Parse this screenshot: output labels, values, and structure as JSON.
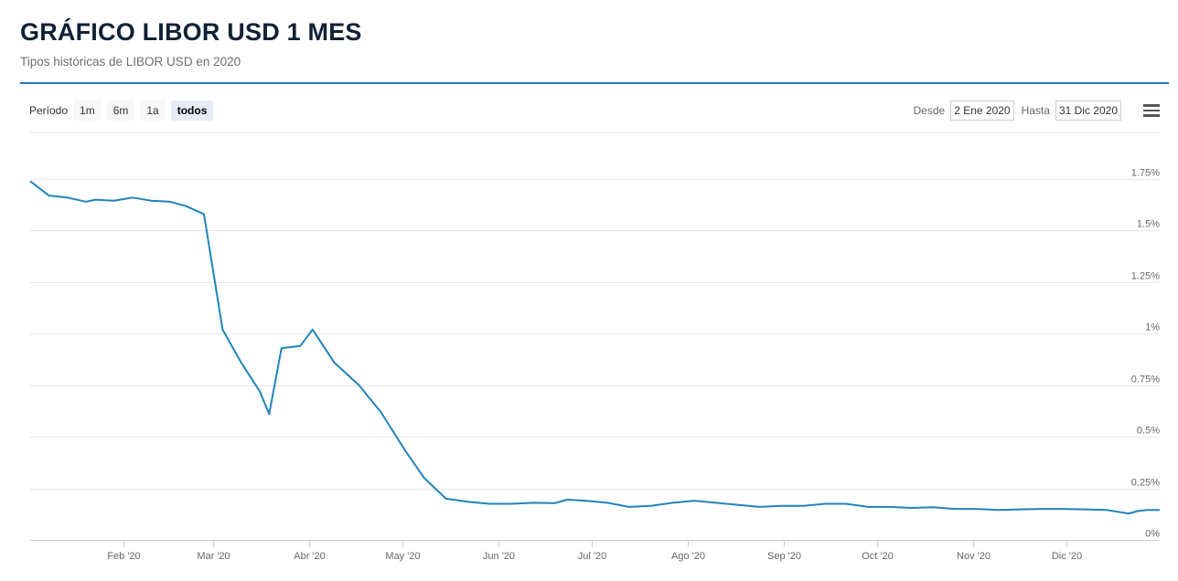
{
  "header": {
    "title": "GRÁFICO LIBOR USD 1 MES",
    "subtitle": "Tipos históricas de LIBOR USD en 2020"
  },
  "range_selector": {
    "label": "Período",
    "buttons": [
      {
        "label": "1m",
        "active": false
      },
      {
        "label": "6m",
        "active": false
      },
      {
        "label": "1a",
        "active": false
      },
      {
        "label": "todos",
        "active": true
      }
    ]
  },
  "date_range": {
    "from_label": "Desde",
    "from_value": "2 Ene 2020",
    "to_label": "Hasta",
    "to_value": "31 Dic 2020"
  },
  "menu": {
    "icon": "hamburger-menu-icon"
  },
  "colors": {
    "accent": "#1a7bc0",
    "line": "#1f84b9",
    "title": "#0f2137"
  },
  "chart_data": {
    "type": "line",
    "title": "GRÁFICO LIBOR USD 1 MES",
    "subtitle": "Tipos históricas de LIBOR USD en 2020",
    "xlabel": "",
    "ylabel": "",
    "x_range": [
      "2020-01-02",
      "2020-12-31"
    ],
    "ylim": [
      0,
      1.75
    ],
    "grid": true,
    "y_ticks": [
      {
        "value": 0,
        "label": "0%"
      },
      {
        "value": 0.25,
        "label": "0.25%"
      },
      {
        "value": 0.5,
        "label": "0.5%"
      },
      {
        "value": 0.75,
        "label": "0.75%"
      },
      {
        "value": 1,
        "label": "1%"
      },
      {
        "value": 1.25,
        "label": "1.25%"
      },
      {
        "value": 1.5,
        "label": "1.5%"
      },
      {
        "value": 1.75,
        "label": "1.75%"
      }
    ],
    "x_ticks": [
      {
        "date": "2020-02-01",
        "label": "Feb '20"
      },
      {
        "date": "2020-03-01",
        "label": "Mar '20"
      },
      {
        "date": "2020-04-01",
        "label": "Abr '20"
      },
      {
        "date": "2020-05-01",
        "label": "May '20"
      },
      {
        "date": "2020-06-01",
        "label": "Jun '20"
      },
      {
        "date": "2020-07-01",
        "label": "Jul '20"
      },
      {
        "date": "2020-08-01",
        "label": "Ago '20"
      },
      {
        "date": "2020-09-01",
        "label": "Sep '20"
      },
      {
        "date": "2020-10-01",
        "label": "Oct '20"
      },
      {
        "date": "2020-11-01",
        "label": "Nov '20"
      },
      {
        "date": "2020-12-01",
        "label": "Dic '20"
      }
    ],
    "series": [
      {
        "points": [
          [
            "2020-01-02",
            1.74
          ],
          [
            "2020-01-08",
            1.67
          ],
          [
            "2020-01-14",
            1.66
          ],
          [
            "2020-01-20",
            1.64
          ],
          [
            "2020-01-23",
            1.65
          ],
          [
            "2020-01-29",
            1.645
          ],
          [
            "2020-02-04",
            1.66
          ],
          [
            "2020-02-10",
            1.645
          ],
          [
            "2020-02-16",
            1.64
          ],
          [
            "2020-02-21",
            1.62
          ],
          [
            "2020-02-27",
            1.58
          ],
          [
            "2020-03-04",
            1.02
          ],
          [
            "2020-03-10",
            0.86
          ],
          [
            "2020-03-16",
            0.72
          ],
          [
            "2020-03-19",
            0.61
          ],
          [
            "2020-03-23",
            0.93
          ],
          [
            "2020-03-29",
            0.94
          ],
          [
            "2020-04-02",
            1.02
          ],
          [
            "2020-04-09",
            0.86
          ],
          [
            "2020-04-17",
            0.75
          ],
          [
            "2020-04-24",
            0.62
          ],
          [
            "2020-05-02",
            0.43
          ],
          [
            "2020-05-08",
            0.3
          ],
          [
            "2020-05-15",
            0.2
          ],
          [
            "2020-05-22",
            0.185
          ],
          [
            "2020-05-29",
            0.175
          ],
          [
            "2020-06-05",
            0.175
          ],
          [
            "2020-06-12",
            0.18
          ],
          [
            "2020-06-19",
            0.178
          ],
          [
            "2020-06-23",
            0.195
          ],
          [
            "2020-06-29",
            0.19
          ],
          [
            "2020-07-06",
            0.18
          ],
          [
            "2020-07-13",
            0.16
          ],
          [
            "2020-07-20",
            0.165
          ],
          [
            "2020-07-27",
            0.18
          ],
          [
            "2020-08-03",
            0.19
          ],
          [
            "2020-08-10",
            0.18
          ],
          [
            "2020-08-17",
            0.17
          ],
          [
            "2020-08-24",
            0.16
          ],
          [
            "2020-08-31",
            0.165
          ],
          [
            "2020-09-07",
            0.165
          ],
          [
            "2020-09-14",
            0.175
          ],
          [
            "2020-09-21",
            0.175
          ],
          [
            "2020-09-28",
            0.16
          ],
          [
            "2020-10-05",
            0.16
          ],
          [
            "2020-10-12",
            0.155
          ],
          [
            "2020-10-19",
            0.158
          ],
          [
            "2020-10-26",
            0.15
          ],
          [
            "2020-11-02",
            0.15
          ],
          [
            "2020-11-09",
            0.145
          ],
          [
            "2020-11-16",
            0.148
          ],
          [
            "2020-11-23",
            0.15
          ],
          [
            "2020-11-30",
            0.15
          ],
          [
            "2020-12-07",
            0.148
          ],
          [
            "2020-12-14",
            0.145
          ],
          [
            "2020-12-21",
            0.128
          ],
          [
            "2020-12-24",
            0.14
          ],
          [
            "2020-12-27",
            0.145
          ],
          [
            "2020-12-31",
            0.145
          ]
        ]
      }
    ]
  }
}
